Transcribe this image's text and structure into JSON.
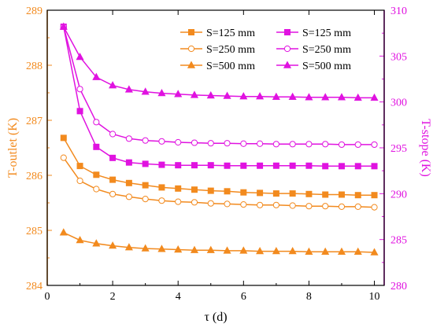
{
  "colors": {
    "left": "#F28A1E",
    "right": "#E012E0",
    "axis": "#000000"
  },
  "chart_data": {
    "type": "line",
    "title": "",
    "xlabel": "τ (d)",
    "ylabel_left": "T-outlet (K)",
    "ylabel_right": "T-stope (K)",
    "xlim": [
      0,
      10.3
    ],
    "ylim_left": [
      284,
      289
    ],
    "ylim_right": [
      280,
      310
    ],
    "x_ticks": [
      "0",
      "2",
      "4",
      "6",
      "8",
      "10"
    ],
    "y_ticks_left": [
      "284",
      "285",
      "286",
      "287",
      "288",
      "289"
    ],
    "y_ticks_right": [
      "280",
      "285",
      "290",
      "295",
      "300",
      "305",
      "310"
    ],
    "grid": false,
    "legend_position": "top-right",
    "legend": [
      {
        "label": "S=125 mm",
        "series": 0
      },
      {
        "label": "S=125 mm",
        "series": 3
      },
      {
        "label": "S=250 mm",
        "series": 1
      },
      {
        "label": "S=250 mm",
        "series": 4
      },
      {
        "label": "S=500 mm",
        "series": 2
      },
      {
        "label": "S=500 mm",
        "series": 5
      }
    ],
    "series": [
      {
        "name": "S=125 mm",
        "axis": "left",
        "marker": "square",
        "filled": true,
        "x": [
          0.5,
          1,
          1.5,
          2,
          2.5,
          3,
          3.5,
          4,
          4.5,
          5,
          5.5,
          6,
          6.5,
          7,
          7.5,
          8,
          8.5,
          9,
          9.5,
          10
        ],
        "y": [
          286.68,
          286.17,
          286.01,
          285.92,
          285.86,
          285.82,
          285.78,
          285.76,
          285.74,
          285.72,
          285.71,
          285.69,
          285.68,
          285.67,
          285.67,
          285.66,
          285.65,
          285.65,
          285.64,
          285.64
        ]
      },
      {
        "name": "S=250 mm",
        "axis": "left",
        "marker": "circle",
        "filled": false,
        "x": [
          0.5,
          1,
          1.5,
          2,
          2.5,
          3,
          3.5,
          4,
          4.5,
          5,
          5.5,
          6,
          6.5,
          7,
          7.5,
          8,
          8.5,
          9,
          9.5,
          10
        ],
        "y": [
          286.32,
          285.9,
          285.75,
          285.66,
          285.61,
          285.57,
          285.54,
          285.52,
          285.51,
          285.49,
          285.48,
          285.47,
          285.46,
          285.46,
          285.45,
          285.44,
          285.44,
          285.43,
          285.43,
          285.42
        ]
      },
      {
        "name": "S=500 mm",
        "axis": "left",
        "marker": "triangle",
        "filled": true,
        "x": [
          0.5,
          1,
          1.5,
          2,
          2.5,
          3,
          3.5,
          4,
          4.5,
          5,
          5.5,
          6,
          6.5,
          7,
          7.5,
          8,
          8.5,
          9,
          9.5,
          10
        ],
        "y": [
          284.96,
          284.82,
          284.76,
          284.72,
          284.69,
          284.67,
          284.66,
          284.65,
          284.64,
          284.64,
          284.63,
          284.63,
          284.62,
          284.62,
          284.62,
          284.61,
          284.61,
          284.61,
          284.61,
          284.6
        ]
      },
      {
        "name": "S=125 mm",
        "axis": "right",
        "marker": "square",
        "filled": true,
        "x": [
          0.5,
          1,
          1.5,
          2,
          2.5,
          3,
          3.5,
          4,
          4.5,
          5,
          5.5,
          6,
          6.5,
          7,
          7.5,
          8,
          8.5,
          9,
          9.5,
          10
        ],
        "y": [
          308.2,
          299.0,
          295.1,
          293.9,
          293.4,
          293.25,
          293.15,
          293.1,
          293.1,
          293.1,
          293.05,
          293.05,
          293.05,
          293.05,
          293.05,
          293.05,
          293.0,
          293.0,
          293.0,
          293.0
        ]
      },
      {
        "name": "S=250 mm",
        "axis": "right",
        "marker": "circle",
        "filled": false,
        "x": [
          0.5,
          1,
          1.5,
          2,
          2.5,
          3,
          3.5,
          4,
          4.5,
          5,
          5.5,
          6,
          6.5,
          7,
          7.5,
          8,
          8.5,
          9,
          9.5,
          10
        ],
        "y": [
          308.2,
          301.4,
          297.8,
          296.5,
          296.0,
          295.8,
          295.7,
          295.6,
          295.55,
          295.5,
          295.5,
          295.45,
          295.45,
          295.4,
          295.4,
          295.4,
          295.4,
          295.35,
          295.35,
          295.35
        ]
      },
      {
        "name": "S=500 mm",
        "axis": "right",
        "marker": "triangle",
        "filled": true,
        "x": [
          0.5,
          1,
          1.5,
          2,
          2.5,
          3,
          3.5,
          4,
          4.5,
          5,
          5.5,
          6,
          6.5,
          7,
          7.5,
          8,
          8.5,
          9,
          9.5,
          10
        ],
        "y": [
          308.2,
          304.9,
          302.7,
          301.8,
          301.35,
          301.1,
          300.95,
          300.85,
          300.75,
          300.7,
          300.65,
          300.6,
          300.6,
          300.55,
          300.55,
          300.5,
          300.5,
          300.5,
          300.45,
          300.45
        ]
      }
    ]
  }
}
